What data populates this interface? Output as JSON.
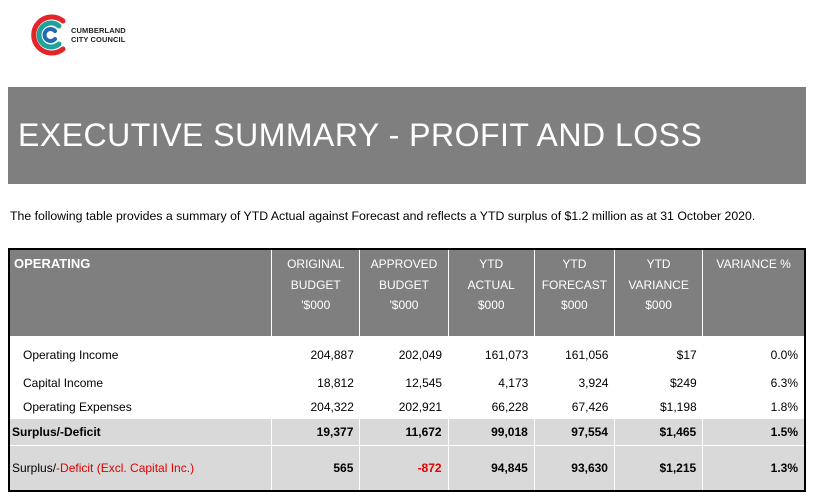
{
  "brand": {
    "name_line1": "CUMBERLAND",
    "name_line2": "CITY COUNCIL",
    "colors": {
      "red": "#e3242b",
      "teal": "#1ba39c",
      "blue": "#1f6ab4"
    }
  },
  "banner": {
    "title": "EXECUTIVE SUMMARY - PROFIT AND LOSS"
  },
  "intro": "The following table provides a summary of YTD Actual against Forecast and reflects a YTD surplus of $1.2 million as at 31 October 2020.",
  "table": {
    "header": {
      "col0": "OPERATING",
      "col1": [
        "ORIGINAL",
        "BUDGET",
        "'$000"
      ],
      "col2": [
        "APPROVED",
        "BUDGET",
        "'$000"
      ],
      "col3": [
        "YTD",
        "ACTUAL",
        "$000"
      ],
      "col4": [
        "YTD",
        "FORECAST",
        "$000"
      ],
      "col5": [
        "YTD",
        "VARIANCE",
        "$000"
      ],
      "col6": "VARIANCE %"
    },
    "rows": [
      {
        "label": "Operating Income",
        "original": "204,887",
        "approved": "202,049",
        "ytd_actual": "161,073",
        "ytd_forecast": "161,056",
        "ytd_variance": "$17",
        "variance_pct": "0.0%"
      },
      {
        "label": "Capital Income",
        "original": "18,812",
        "approved": "12,545",
        "ytd_actual": "4,173",
        "ytd_forecast": "3,924",
        "ytd_variance": "$249",
        "variance_pct": "6.3%"
      },
      {
        "label": "Operating Expenses",
        "original": "204,322",
        "approved": "202,921",
        "ytd_actual": "66,228",
        "ytd_forecast": "67,426",
        "ytd_variance": "$1,198",
        "variance_pct": "1.8%"
      },
      {
        "label": "Surplus/-Deficit",
        "original": "19,377",
        "approved": "11,672",
        "ytd_actual": "99,018",
        "ytd_forecast": "97,554",
        "ytd_variance": "$1,465",
        "variance_pct": "1.5%"
      },
      {
        "label_a": "Surplus/",
        "label_b": "-Deficit (Excl. Capital Inc.)",
        "original": "565",
        "approved": "-872",
        "ytd_actual": "94,845",
        "ytd_forecast": "93,630",
        "ytd_variance": "$1,215",
        "variance_pct": "1.3%"
      }
    ]
  }
}
